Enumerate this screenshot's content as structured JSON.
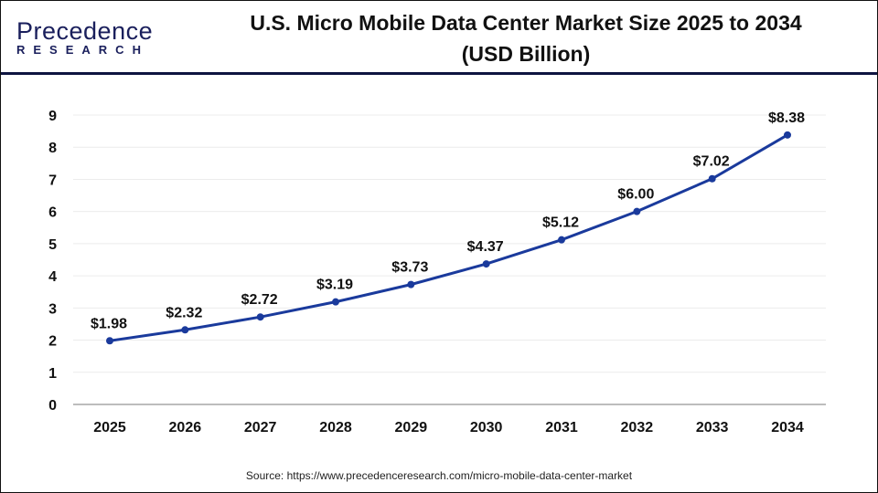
{
  "logo": {
    "line1": "Precedence",
    "line2": "RESEARCH"
  },
  "title_line1": "U.S. Micro Mobile Data Center Market Size 2025 to 2034",
  "title_line2": "(USD Billion)",
  "source": "Source: https://www.precedenceresearch.com/micro-mobile-data-center-market",
  "chart_data": {
    "type": "line",
    "title": "U.S. Micro Mobile Data Center Market Size 2025 to 2034 (USD Billion)",
    "categories": [
      "2025",
      "2026",
      "2027",
      "2028",
      "2029",
      "2030",
      "2031",
      "2032",
      "2033",
      "2034"
    ],
    "values": [
      1.98,
      2.32,
      2.72,
      3.19,
      3.73,
      4.37,
      5.12,
      6.0,
      7.02,
      8.38
    ],
    "data_labels": [
      "$1.98",
      "$2.32",
      "$2.72",
      "$3.19",
      "$3.73",
      "$4.37",
      "$5.12",
      "$6.00",
      "$7.02",
      "$8.38"
    ],
    "yticks": [
      "0",
      "1",
      "2",
      "3",
      "4",
      "5",
      "6",
      "7",
      "8",
      "9"
    ],
    "ylim": [
      0,
      9
    ],
    "xlabel": "",
    "ylabel": "",
    "grid": true,
    "line_color": "#1a3a9c"
  }
}
